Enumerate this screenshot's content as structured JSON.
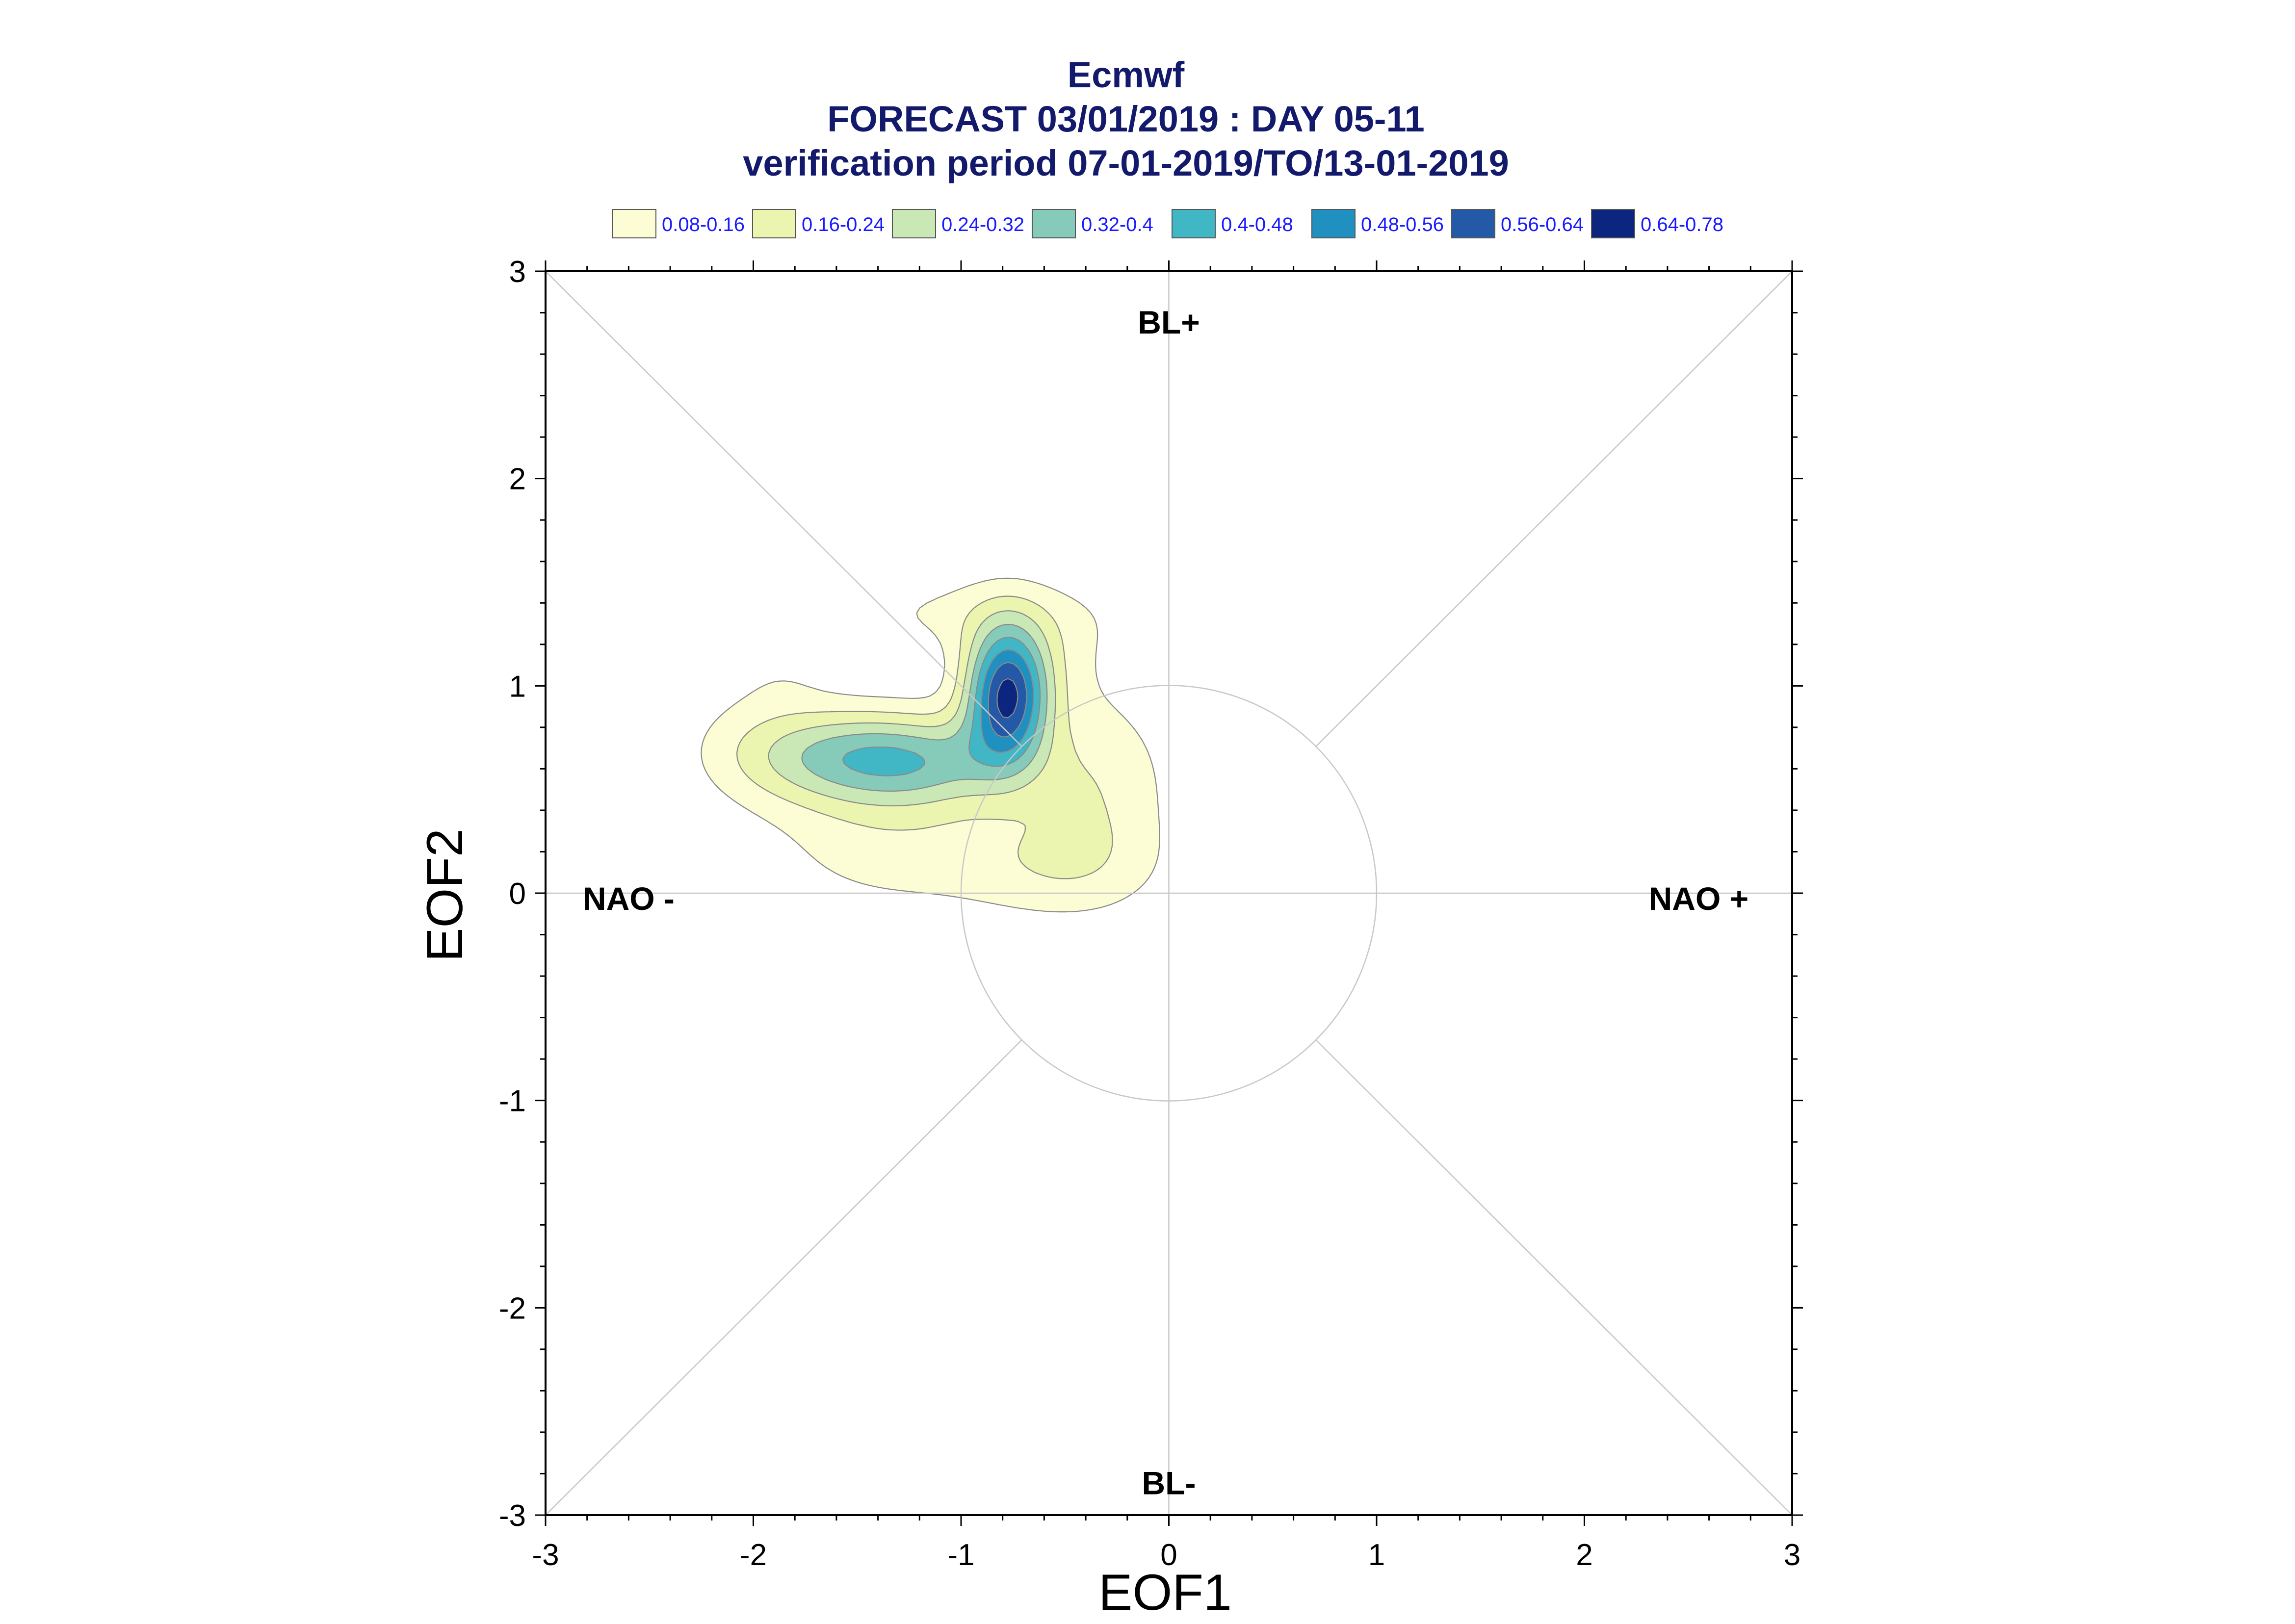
{
  "chart_data": {
    "type": "contour",
    "title": "Ecmwf",
    "subtitle": "FORECAST 03/01/2019 : DAY 05-11",
    "subtitle2": "verification period 07-01-2019/TO/13-01-2019",
    "xlabel": "EOF1",
    "ylabel": "EOF2",
    "xlim": [
      -3,
      3
    ],
    "ylim": [
      -3,
      3
    ],
    "xticks": [
      -3,
      -2,
      -1,
      0,
      1,
      2,
      3
    ],
    "yticks": [
      -3,
      -2,
      -1,
      0,
      1,
      2,
      3
    ],
    "legend": [
      {
        "label": "0.08-0.16",
        "color": "#fcfdd4"
      },
      {
        "label": "0.16-0.24",
        "color": "#ebf5b0"
      },
      {
        "label": "0.24-0.32",
        "color": "#c9e8b6"
      },
      {
        "label": "0.32-0.4",
        "color": "#86cbb9"
      },
      {
        "label": "0.4-0.48",
        "color": "#41b6c4"
      },
      {
        "label": "0.48-0.56",
        "color": "#1f90c0"
      },
      {
        "label": "0.56-0.64",
        "color": "#2359a6"
      },
      {
        "label": "0.64-0.78",
        "color": "#0c2680"
      }
    ],
    "regimes": [
      {
        "label": "BL+",
        "x": 0,
        "y": 2.7
      },
      {
        "label": "BL-",
        "x": 0,
        "y": -2.9
      },
      {
        "label": "NAO -",
        "x": -2.6,
        "y": -0.08
      },
      {
        "label": "NAO +",
        "x": 2.55,
        "y": -0.08
      }
    ],
    "reference_circle_radius": 1,
    "density_kernels": [
      {
        "x": -0.78,
        "y": 0.96,
        "sx": 0.14,
        "sy": 0.23,
        "w": 0.62
      },
      {
        "x": -1.48,
        "y": 0.66,
        "sx": 0.38,
        "sy": 0.16,
        "w": 0.34
      },
      {
        "x": -1.05,
        "y": 0.62,
        "sx": 0.28,
        "sy": 0.15,
        "w": 0.12
      },
      {
        "x": -0.35,
        "y": 0.52,
        "sx": 0.26,
        "sy": 0.32,
        "w": 0.14
      },
      {
        "x": -0.55,
        "y": 0.12,
        "sx": 0.35,
        "sy": 0.18,
        "w": 0.11
      },
      {
        "x": -1.35,
        "y": 0.28,
        "sx": 0.42,
        "sy": 0.26,
        "w": 0.12
      },
      {
        "x": -2.0,
        "y": 0.75,
        "sx": 0.24,
        "sy": 0.22,
        "w": 0.06
      },
      {
        "x": -0.95,
        "y": 1.35,
        "sx": 0.5,
        "sy": 0.14,
        "w": 0.09
      },
      {
        "x": -0.55,
        "y": 1.15,
        "sx": 0.22,
        "sy": 0.2,
        "w": 0.06
      },
      {
        "x": -1.85,
        "y": 1.05,
        "sx": 0.18,
        "sy": 0.12,
        "w": 0.04
      }
    ],
    "colors": {
      "title": "#131a6b",
      "legend_text": "#1a1aff",
      "contour_line": "#8a8a8a",
      "guide_line": "#c8c8c8"
    }
  }
}
